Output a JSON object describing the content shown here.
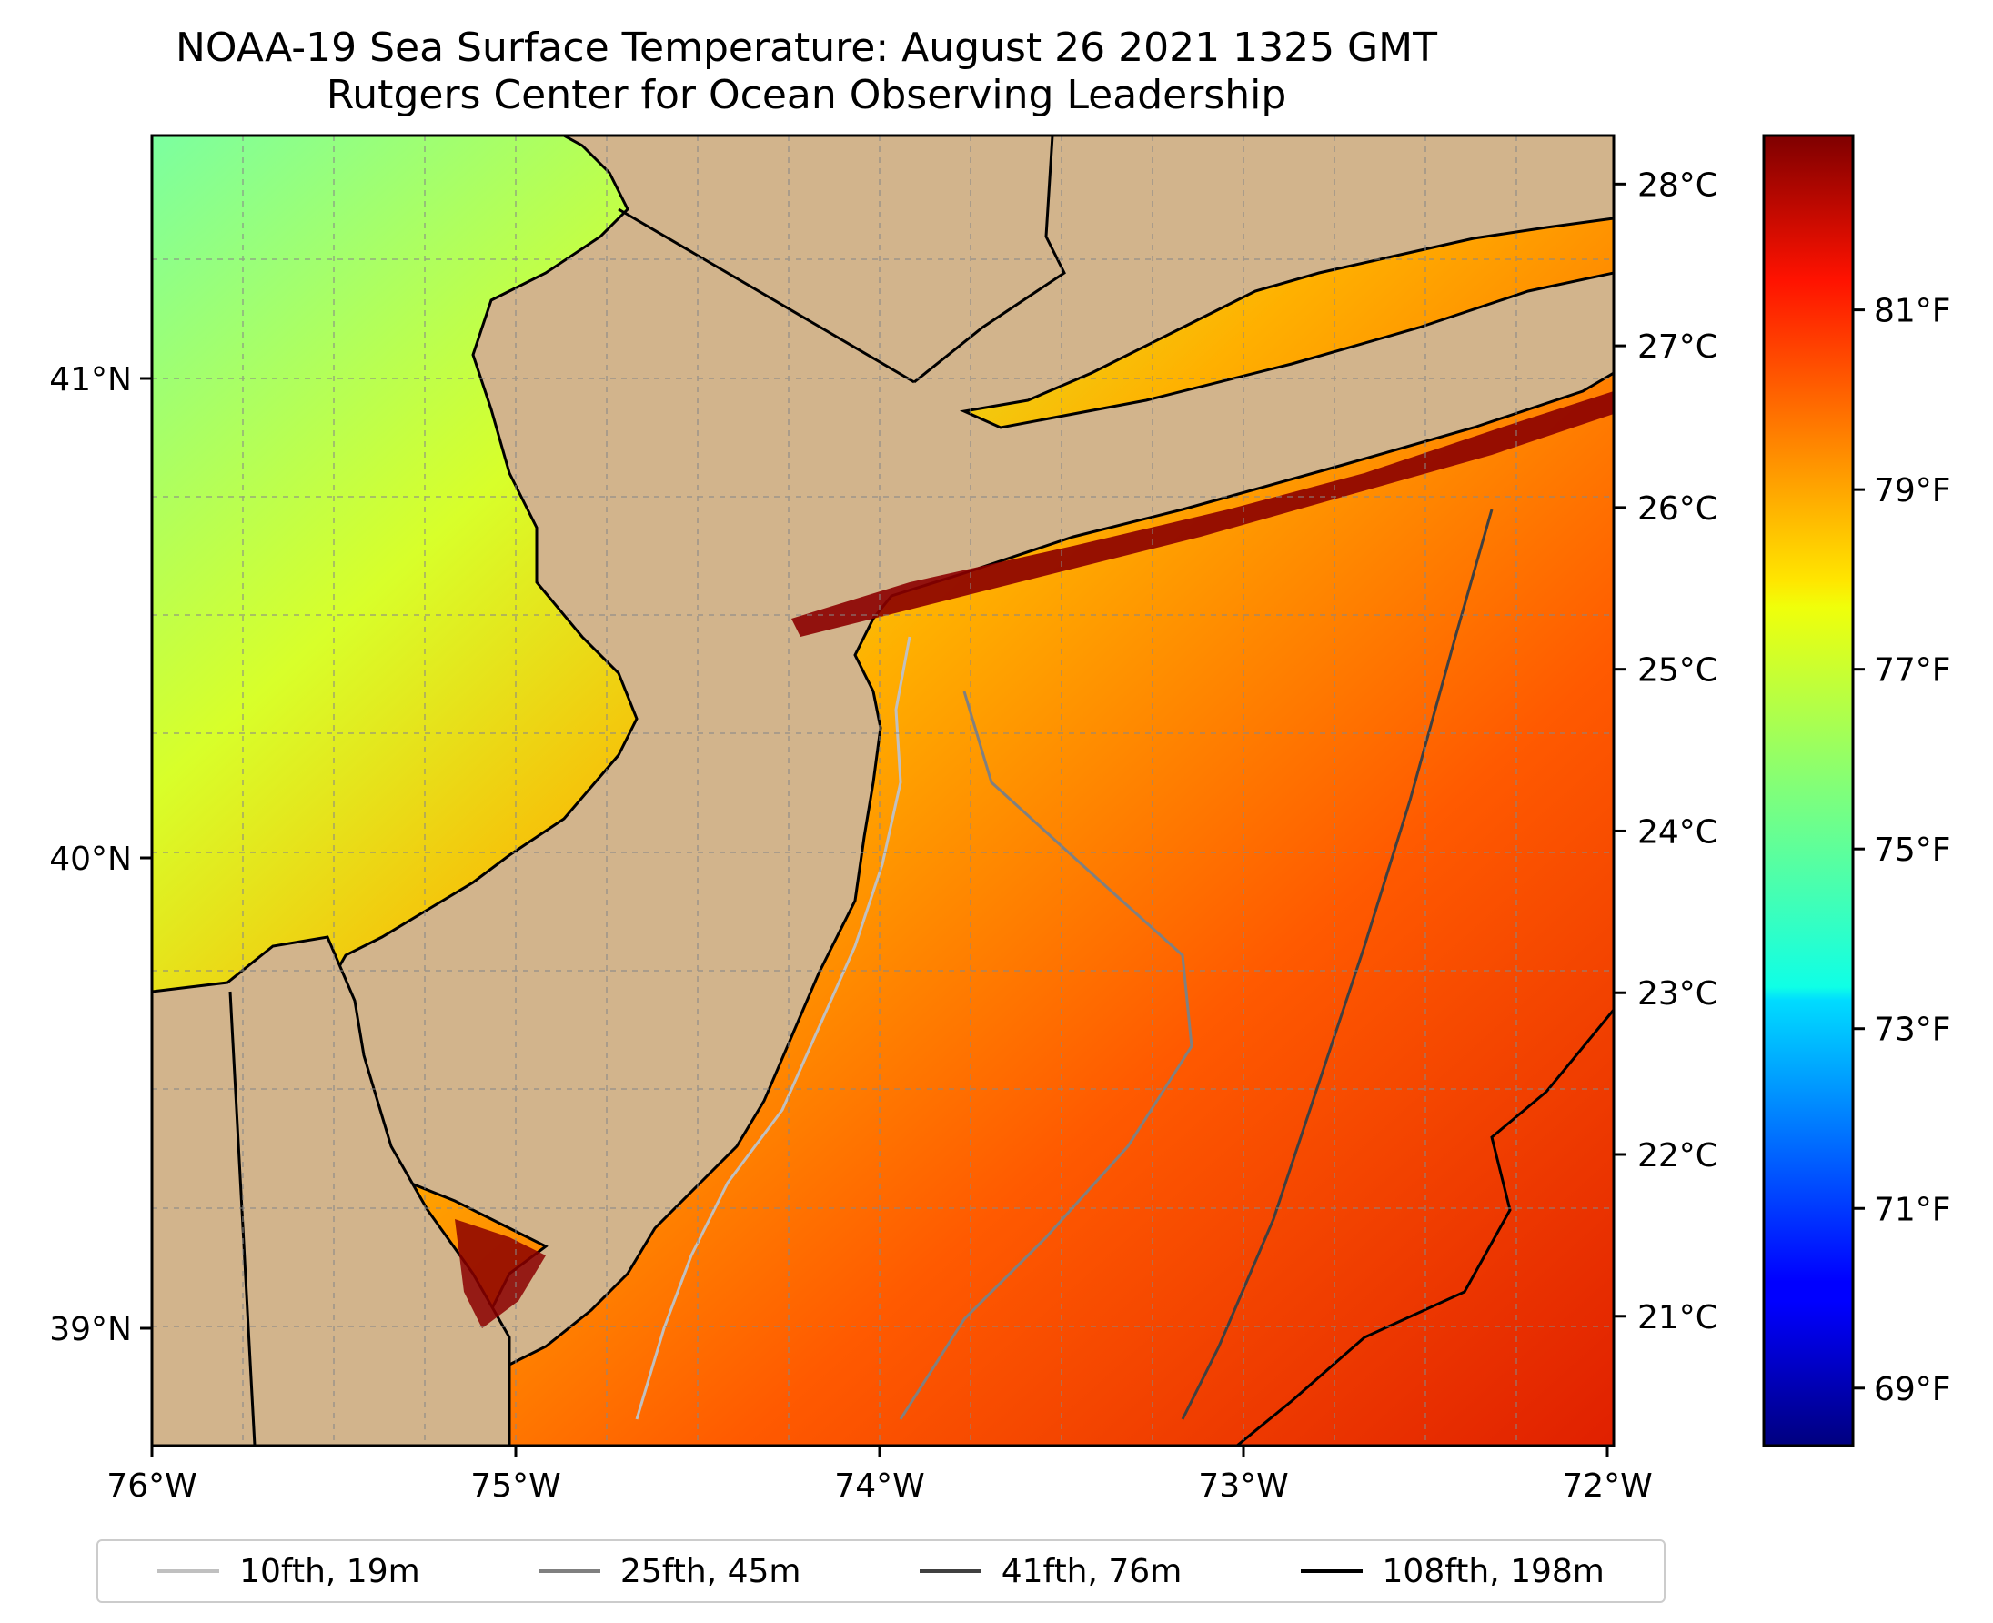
{
  "title_line1": "NOAA-19 Sea Surface Temperature: August 26 2021 1325 GMT",
  "title_line2": "Rutgers Center for Ocean Observing Leadership",
  "map": {
    "lon_range": [
      -76,
      -72
    ],
    "lat_range": [
      38.75,
      41.52
    ],
    "lon_ticks": [
      "76°W",
      "75°W",
      "74°W",
      "73°W",
      "72°W"
    ],
    "lat_ticks": [
      "41°N",
      "40°N",
      "39°N"
    ],
    "land_color": "#d2b48c",
    "grid": true
  },
  "colorbar": {
    "celsius_ticks": [
      "28°C",
      "27°C",
      "26°C",
      "25°C",
      "24°C",
      "23°C",
      "22°C",
      "21°C"
    ],
    "fahrenheit_ticks": [
      "81°F",
      "79°F",
      "77°F",
      "75°F",
      "73°F",
      "71°F",
      "69°F"
    ],
    "colormap": "jet",
    "range_c": [
      20.2,
      28.3
    ]
  },
  "legend": [
    {
      "label": "10fth, 19m",
      "color": "#c0c0c0"
    },
    {
      "label": "25fth, 45m",
      "color": "#808080"
    },
    {
      "label": "41fth, 76m",
      "color": "#404040"
    },
    {
      "label": "108fth, 198m",
      "color": "#000000"
    }
  ]
}
